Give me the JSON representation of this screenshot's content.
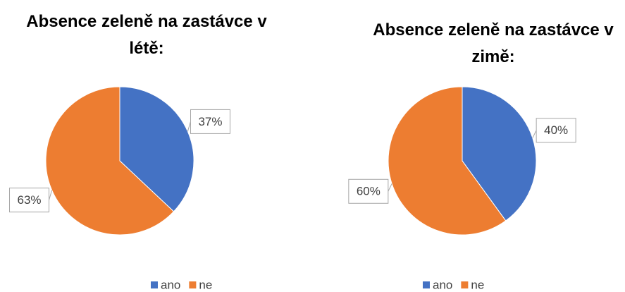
{
  "chart_data": [
    {
      "type": "pie",
      "title": "Absence zeleně na zastávce v létě:",
      "categories": [
        "ano",
        "ne"
      ],
      "values": [
        37,
        63
      ],
      "value_labels": [
        "37%",
        "63%"
      ],
      "colors": [
        "#4472c4",
        "#ed7d31"
      ],
      "legend": "bottom"
    },
    {
      "type": "pie",
      "title": "Absence zeleně na zastávce v zimě:",
      "categories": [
        "ano",
        "ne"
      ],
      "values": [
        40,
        60
      ],
      "value_labels": [
        "40%",
        "60%"
      ],
      "colors": [
        "#4472c4",
        "#ed7d31"
      ],
      "legend": "bottom"
    }
  ]
}
